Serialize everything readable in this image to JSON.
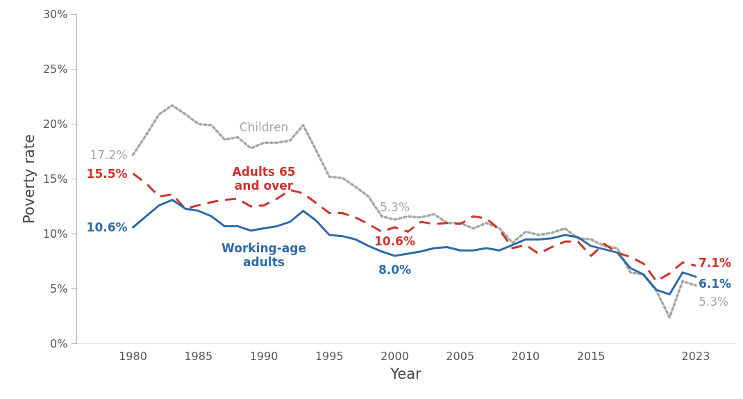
{
  "chart_data": {
    "type": "line",
    "xlabel": "Year",
    "ylabel": "Poverty rate",
    "x": [
      1980,
      1981,
      1982,
      1983,
      1984,
      1985,
      1986,
      1987,
      1988,
      1989,
      1990,
      1991,
      1992,
      1993,
      1994,
      1995,
      1996,
      1997,
      1998,
      1999,
      2000,
      2001,
      2002,
      2003,
      2004,
      2005,
      2006,
      2007,
      2008,
      2009,
      2010,
      2011,
      2012,
      2013,
      2014,
      2015,
      2016,
      2017,
      2018,
      2019,
      2020,
      2021,
      2022,
      2023
    ],
    "series": [
      {
        "name": "Children",
        "color": "#a6a6a6",
        "line_style": "dotted",
        "values": [
          17.2,
          19.0,
          20.9,
          21.7,
          20.9,
          20.0,
          19.9,
          18.6,
          18.8,
          17.8,
          18.3,
          18.3,
          18.5,
          19.9,
          17.6,
          15.2,
          15.1,
          14.3,
          13.4,
          11.6,
          11.3,
          11.6,
          11.5,
          11.8,
          11.0,
          11.0,
          10.5,
          11.0,
          10.5,
          9.2,
          10.2,
          9.9,
          10.1,
          10.5,
          9.6,
          9.5,
          8.9,
          8.7,
          6.5,
          6.3,
          4.8,
          2.4,
          5.7,
          5.3
        ]
      },
      {
        "name": "Adults 65\nand over",
        "color": "#d0312d",
        "line_style": "dashed",
        "values": [
          15.5,
          14.6,
          13.4,
          13.6,
          12.3,
          12.6,
          12.9,
          13.1,
          13.2,
          12.5,
          12.6,
          13.2,
          14.0,
          13.7,
          12.8,
          11.9,
          11.9,
          11.5,
          10.9,
          10.2,
          10.6,
          10.2,
          11.1,
          10.9,
          11.0,
          10.9,
          11.6,
          11.4,
          10.4,
          8.7,
          9.0,
          8.2,
          8.8,
          9.3,
          9.3,
          8.0,
          9.1,
          8.3,
          7.9,
          7.3,
          5.7,
          6.4,
          7.4,
          7.1
        ]
      },
      {
        "name": "Working-age\nadults",
        "color": "#2e6aa8",
        "line_style": "solid",
        "values": [
          10.6,
          11.6,
          12.6,
          13.1,
          12.3,
          12.1,
          11.6,
          10.7,
          10.7,
          10.3,
          10.5,
          10.7,
          11.1,
          12.1,
          11.2,
          9.9,
          9.8,
          9.5,
          8.9,
          8.4,
          8.0,
          8.2,
          8.4,
          8.7,
          8.8,
          8.5,
          8.5,
          8.7,
          8.5,
          9.0,
          9.5,
          9.5,
          9.6,
          9.9,
          9.7,
          8.9,
          8.6,
          8.3,
          6.9,
          6.3,
          4.9,
          4.5,
          6.5,
          6.1
        ]
      }
    ],
    "xlim": [
      1975.7,
      2026
    ],
    "xticks": [
      1980,
      1985,
      1990,
      1995,
      2000,
      2005,
      2010,
      2015,
      2023
    ],
    "ylim": [
      0,
      30
    ],
    "yticks": [
      {
        "value": 0,
        "label": "0%"
      },
      {
        "value": 5,
        "label": "5%"
      },
      {
        "value": 10,
        "label": "10%"
      },
      {
        "value": 15,
        "label": "15%"
      },
      {
        "value": 20,
        "label": "20%"
      },
      {
        "value": 25,
        "label": "25%"
      },
      {
        "value": 30,
        "label": "30%"
      }
    ],
    "grid": false,
    "annotations": [
      {
        "text": "17.2%",
        "x": 1980,
        "y": 17.2
      },
      {
        "text": "15.5%",
        "x": 1980,
        "y": 15.5
      },
      {
        "text": "10.6%",
        "x": 1980,
        "y": 10.6
      },
      {
        "text": "5.3%",
        "x": 2000,
        "y": 11.3
      },
      {
        "text": "10.6%",
        "x": 2000,
        "y": 10.6
      },
      {
        "text": "8.0%",
        "x": 2000,
        "y": 8.0
      },
      {
        "text": "7.1%",
        "x": 2023,
        "y": 7.1
      },
      {
        "text": "6.1%",
        "x": 2023,
        "y": 6.1
      },
      {
        "text": "5.3%",
        "x": 2023,
        "y": 5.3
      }
    ]
  }
}
